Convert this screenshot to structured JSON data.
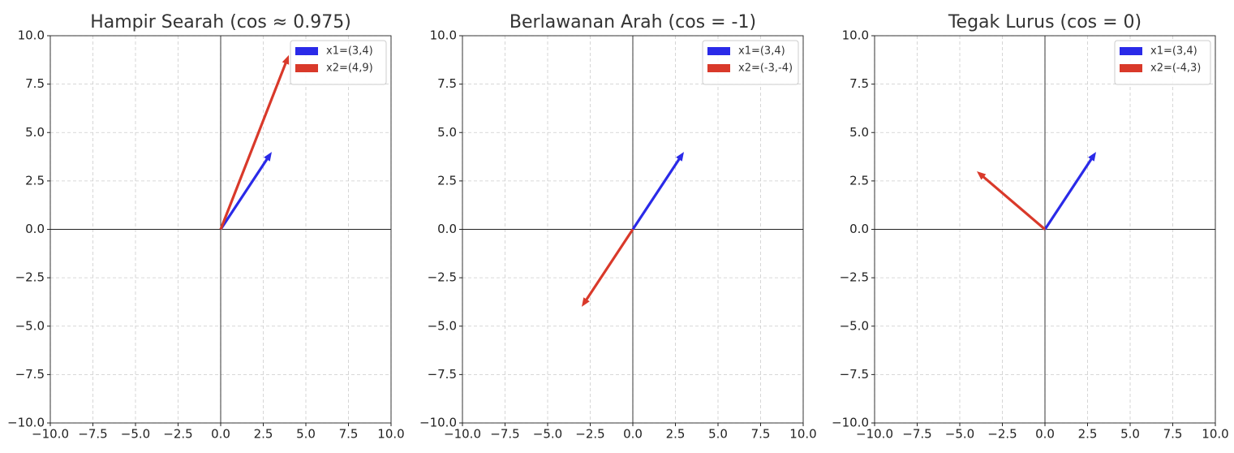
{
  "chart_data": [
    {
      "type": "quiver",
      "title": "Hampir Searah (cos ≈ 0.975)",
      "series": [
        {
          "name": "x1=(3,4)",
          "color": "#2a2ae8",
          "x": [
            3
          ],
          "values": [
            4
          ]
        },
        {
          "name": "x2=(4,9)",
          "color": "#d9392a",
          "x": [
            4
          ],
          "values": [
            9
          ]
        }
      ],
      "xlim": [
        -10,
        10
      ],
      "ylim": [
        -10,
        10
      ],
      "xticks": [
        {
          "value": -10,
          "label": "−10.0"
        },
        {
          "value": -7.5,
          "label": "−7.5"
        },
        {
          "value": -5,
          "label": "−5.0"
        },
        {
          "value": -2.5,
          "label": "−2.5"
        },
        {
          "value": 0,
          "label": "0.0"
        },
        2.5,
        {
          "value": 5,
          "label": "5.0"
        },
        7.5,
        {
          "value": 10,
          "label": "10.0"
        }
      ],
      "yticks": [
        {
          "value": -10,
          "label": "−10.0"
        },
        {
          "value": -7.5,
          "label": "−7.5"
        },
        {
          "value": -5,
          "label": "−5.0"
        },
        {
          "value": -2.5,
          "label": "−2.5"
        },
        {
          "value": 0,
          "label": "0.0"
        },
        2.5,
        {
          "value": 5,
          "label": "5.0"
        },
        7.5,
        {
          "value": 10,
          "label": "10.0"
        }
      ],
      "grid": true,
      "legend": "upper right"
    },
    {
      "type": "quiver",
      "title": "Berlawanan Arah (cos = -1)",
      "series": [
        {
          "name": "x1=(3,4)",
          "color": "#2a2ae8",
          "x": [
            3
          ],
          "values": [
            4
          ]
        },
        {
          "name": "x2=(-3,-4)",
          "color": "#d9392a",
          "x": [
            -3
          ],
          "values": [
            -4
          ]
        }
      ],
      "xlim": [
        -10,
        10
      ],
      "ylim": [
        -10,
        10
      ],
      "xticks": [
        {
          "value": -10,
          "label": "−10.0"
        },
        {
          "value": -7.5,
          "label": "−7.5"
        },
        {
          "value": -5,
          "label": "−5.0"
        },
        {
          "value": -2.5,
          "label": "−2.5"
        },
        {
          "value": 0,
          "label": "0.0"
        },
        2.5,
        {
          "value": 5,
          "label": "5.0"
        },
        7.5,
        {
          "value": 10,
          "label": "10.0"
        }
      ],
      "yticks": [
        {
          "value": -10,
          "label": "−10.0"
        },
        {
          "value": -7.5,
          "label": "−7.5"
        },
        {
          "value": -5,
          "label": "−5.0"
        },
        {
          "value": -2.5,
          "label": "−2.5"
        },
        {
          "value": 0,
          "label": "0.0"
        },
        2.5,
        {
          "value": 5,
          "label": "5.0"
        },
        7.5,
        {
          "value": 10,
          "label": "10.0"
        }
      ],
      "grid": true,
      "legend": "upper right"
    },
    {
      "type": "quiver",
      "title": "Tegak Lurus (cos = 0)",
      "series": [
        {
          "name": "x1=(3,4)",
          "color": "#2a2ae8",
          "x": [
            3
          ],
          "values": [
            4
          ]
        },
        {
          "name": "x2=(-4,3)",
          "color": "#d9392a",
          "x": [
            -4
          ],
          "values": [
            3
          ]
        }
      ],
      "xlim": [
        -10,
        10
      ],
      "ylim": [
        -10,
        10
      ],
      "xticks": [
        {
          "value": -10,
          "label": "−10.0"
        },
        {
          "value": -7.5,
          "label": "−7.5"
        },
        {
          "value": -5,
          "label": "−5.0"
        },
        {
          "value": -2.5,
          "label": "−2.5"
        },
        {
          "value": 0,
          "label": "0.0"
        },
        2.5,
        {
          "value": 5,
          "label": "5.0"
        },
        7.5,
        {
          "value": 10,
          "label": "10.0"
        }
      ],
      "yticks": [
        {
          "value": -10,
          "label": "−10.0"
        },
        {
          "value": -7.5,
          "label": "−7.5"
        },
        {
          "value": -5,
          "label": "−5.0"
        },
        {
          "value": -2.5,
          "label": "−2.5"
        },
        {
          "value": 0,
          "label": "0.0"
        },
        2.5,
        {
          "value": 5,
          "label": "5.0"
        },
        7.5,
        {
          "value": 10,
          "label": "10.0"
        }
      ],
      "grid": true,
      "legend": "upper right"
    }
  ]
}
